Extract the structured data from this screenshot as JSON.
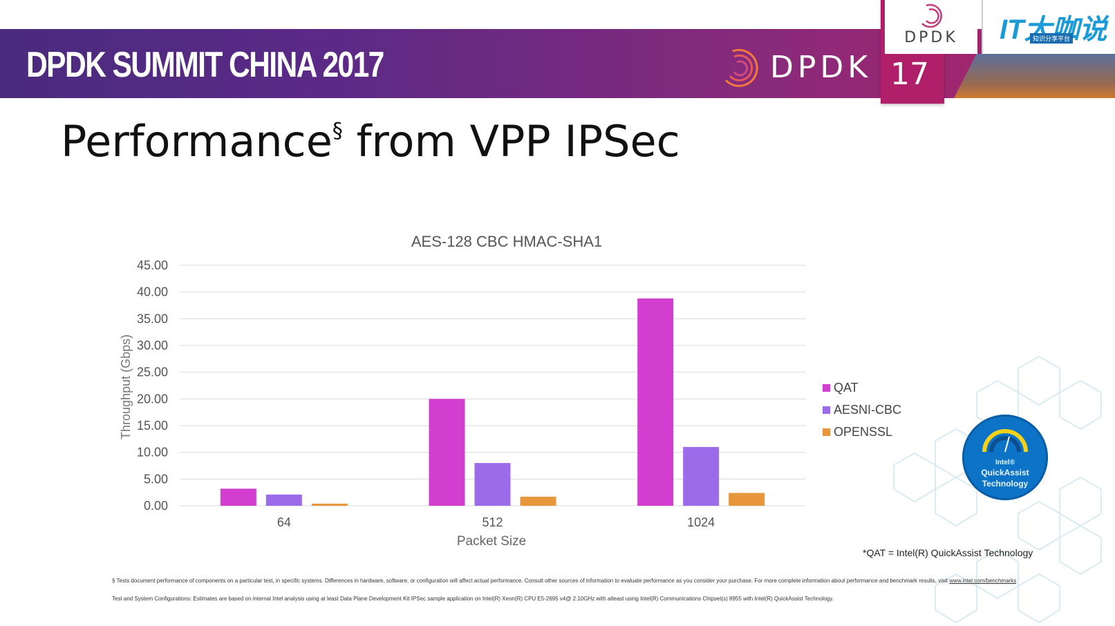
{
  "header": {
    "event_title": "DPDK SUMMIT CHINA 2017",
    "logo_text": "DPDK",
    "tab_logo_text": "DPDK",
    "slide_number": "17",
    "corner_logo_text": "IT大咖说",
    "corner_logo_sub": "知识分享平台"
  },
  "slide": {
    "title_main": "Performance",
    "title_superscript": "§",
    "title_rest": " from VPP IPSec"
  },
  "colors": {
    "qat": "#d23fd0",
    "aesni_cbc": "#9c6bea",
    "openssl": "#e8963c",
    "gridline": "#d9d9d9",
    "axis_text": "#555555"
  },
  "chart_data": {
    "type": "bar",
    "title": "AES-128 CBC HMAC-SHA1",
    "xlabel": "Packet Size",
    "ylabel": "Throughput (Gbps)",
    "categories": [
      "64",
      "512",
      "1024"
    ],
    "ylim": [
      0,
      45
    ],
    "yticks": [
      "0.00",
      "5.00",
      "10.00",
      "15.00",
      "20.00",
      "25.00",
      "30.00",
      "35.00",
      "40.00",
      "45.00"
    ],
    "grid": true,
    "legend_position": "right",
    "series": [
      {
        "name": "QAT",
        "values": [
          3.2,
          20.0,
          38.8
        ]
      },
      {
        "name": "AESNI-CBC",
        "values": [
          2.1,
          8.0,
          11.0
        ]
      },
      {
        "name": "OPENSSL",
        "values": [
          0.4,
          1.7,
          2.4
        ]
      }
    ]
  },
  "legend": {
    "items": [
      "QAT",
      "AESNI-CBC",
      "OPENSSL"
    ]
  },
  "footnote_right": "*QAT = Intel(R) QuickAssist Technology",
  "badge": {
    "line1": "Intel®",
    "line2": "QuickAssist",
    "line3": "Technology"
  },
  "disclaimer": {
    "text": "§ Tests document performance of components on a particular test, in specific systems. Differences in hardware, software, or configuration will affect actual performance. Consult other sources of information to evaluate performance as you consider your purchase.  For more complete information about performance and benchmark results, visit ",
    "link": "www.intel.com/benchmarks",
    "config": "Test and System Configurations: Estimates are based on internal Intel analysis using at least Data Plane Development Kit IPSec sample application on Intel(R) Xeon(R) CPU  E5-2695 v4@ 2.10GHz with atleast using Intel(R) Communications Chipset(s) 8955 with Intel(R) QuickAssist Technology."
  }
}
